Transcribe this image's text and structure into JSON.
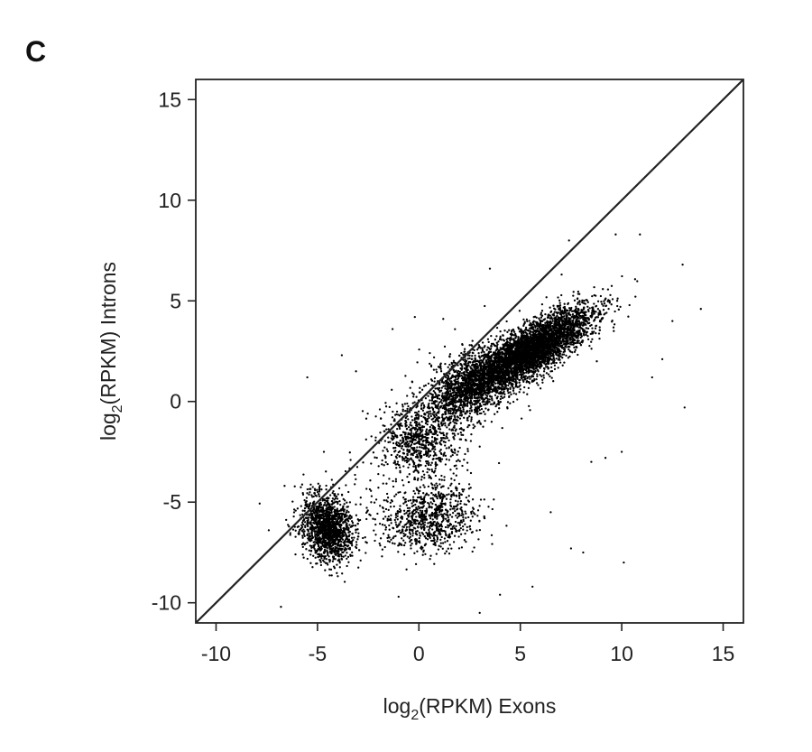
{
  "panel_label": "C",
  "chart_data": {
    "type": "scatter",
    "title": "",
    "xlabel": {
      "pre": "log",
      "sub": "2",
      "post": "(RPKM) Exons"
    },
    "ylabel": {
      "pre": "log",
      "sub": "2",
      "post": "(RPKM) Introns"
    },
    "xlim": [
      -11,
      16
    ],
    "ylim": [
      -11,
      16
    ],
    "xticks": [
      -10,
      -5,
      0,
      5,
      10,
      15
    ],
    "yticks": [
      -10,
      -5,
      0,
      5,
      10,
      15
    ],
    "xtick_labels": [
      "-10",
      "-5",
      "0",
      "5",
      "10",
      "15"
    ],
    "ytick_labels": [
      "-10",
      "-5",
      "0",
      "5",
      "10",
      "15"
    ],
    "grid": false,
    "reference_line": {
      "type": "identity",
      "from": [
        -11,
        -11
      ],
      "to": [
        16,
        16
      ]
    },
    "marker_color": "#000000",
    "point_clusters": [
      {
        "center": [
          5.5,
          2.5
        ],
        "spread_along": 3.2,
        "spread_across": 1.0,
        "slope": 0.65,
        "count": 4200
      },
      {
        "center": [
          2.5,
          0.8
        ],
        "spread_along": 2.2,
        "spread_across": 1.2,
        "slope": 0.8,
        "count": 1300
      },
      {
        "center": [
          0.0,
          -2.0
        ],
        "spread_along": 1.6,
        "spread_across": 1.6,
        "slope": 0.8,
        "count": 600
      },
      {
        "center": [
          -4.5,
          -6.3
        ],
        "spread_along": 1.1,
        "spread_across": 1.5,
        "slope": 0.3,
        "count": 1500
      },
      {
        "center": [
          0.5,
          -5.8
        ],
        "spread_along": 2.2,
        "spread_across": 1.5,
        "slope": 0.2,
        "count": 800
      },
      {
        "center": [
          1.0,
          -1.0
        ],
        "spread_along": 5.0,
        "spread_across": 2.5,
        "slope": 0.9,
        "count": 400
      }
    ],
    "outliers": [
      [
        -5.5,
        1.2
      ],
      [
        -3.8,
        2.3
      ],
      [
        -3.1,
        1.5
      ],
      [
        -1.3,
        3.6
      ],
      [
        -0.2,
        4.2
      ],
      [
        1.2,
        4.1
      ],
      [
        3.5,
        6.6
      ],
      [
        7.4,
        8.0
      ],
      [
        9.7,
        8.3
      ],
      [
        10.9,
        8.3
      ],
      [
        13.0,
        6.8
      ],
      [
        13.9,
        4.6
      ],
      [
        13.1,
        -0.3
      ],
      [
        10.0,
        -2.5
      ],
      [
        9.2,
        -2.8
      ],
      [
        6.5,
        -5.5
      ],
      [
        7.5,
        -7.3
      ],
      [
        8.1,
        -7.5
      ],
      [
        10.1,
        -8.0
      ],
      [
        5.6,
        -9.2
      ],
      [
        4.0,
        -9.6
      ],
      [
        3.0,
        -10.5
      ],
      [
        -1.0,
        -9.7
      ],
      [
        -6.8,
        -10.2
      ],
      [
        -7.4,
        -6.4
      ],
      [
        12.0,
        2.1
      ],
      [
        11.5,
        1.2
      ],
      [
        8.5,
        -3.0
      ],
      [
        6.0,
        6.0
      ],
      [
        12.5,
        4.0
      ]
    ]
  }
}
